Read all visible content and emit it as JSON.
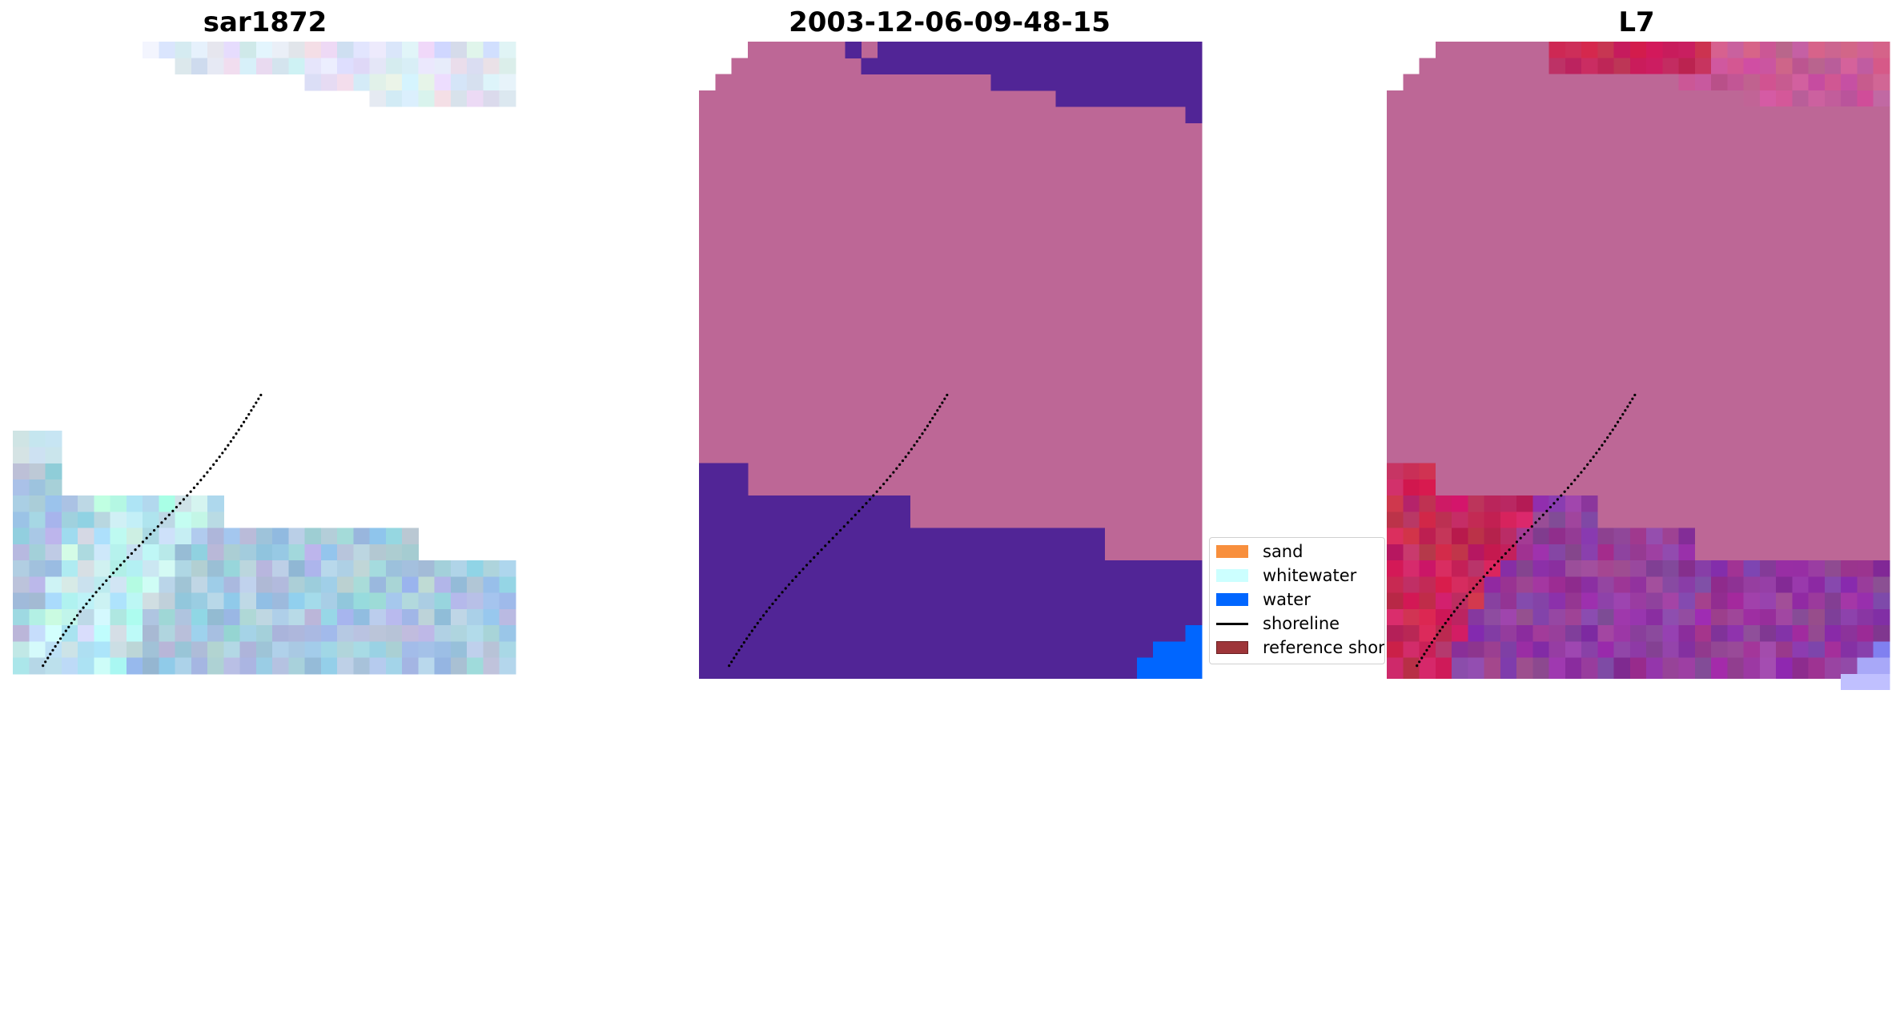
{
  "panels": [
    {
      "title": "sar1872"
    },
    {
      "title": "2003-12-06-09-48-15"
    },
    {
      "title": "L7"
    }
  ],
  "legend": {
    "items": [
      {
        "label": "sand",
        "color": "#f88f3d",
        "kind": "patch"
      },
      {
        "label": "whitewater",
        "color": "#ccffff",
        "kind": "patch"
      },
      {
        "label": "water",
        "color": "#0066ff",
        "kind": "patch"
      },
      {
        "label": "shoreline",
        "color": "#000000",
        "kind": "line"
      },
      {
        "label": "reference shoreline",
        "color": "#9e3539",
        "kind": "patch"
      }
    ]
  },
  "colors": {
    "land_class": "#bd6796",
    "water_class": "#512596",
    "water_blue": "#0066ff",
    "rgb_sea_base": "#a8c8e0",
    "nir_land": "#bd6796",
    "nir_red": "#c8285a",
    "nir_purple": "#913c9f"
  }
}
